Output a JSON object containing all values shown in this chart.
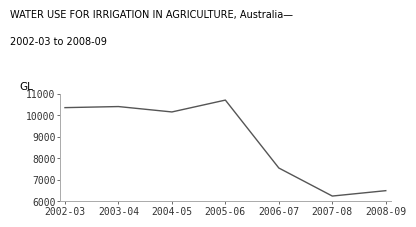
{
  "title_line1": "WATER USE FOR IRRIGATION IN AGRICULTURE, Australia—",
  "title_line2": "2002-03 to 2008-09",
  "ylabel": "GL",
  "x_labels": [
    "2002-03",
    "2003-04",
    "2004-05",
    "2005-06",
    "2006-07",
    "2007-08",
    "2008-09"
  ],
  "y_values": [
    10350,
    10400,
    10150,
    10700,
    7550,
    6250,
    6500
  ],
  "ylim": [
    6000,
    11000
  ],
  "yticks": [
    6000,
    7000,
    8000,
    9000,
    10000,
    11000
  ],
  "line_color": "#555555",
  "background_color": "#ffffff",
  "title_fontsize": 7.0,
  "axis_fontsize": 7.0,
  "gl_fontsize": 7.5,
  "line_width": 1.0
}
